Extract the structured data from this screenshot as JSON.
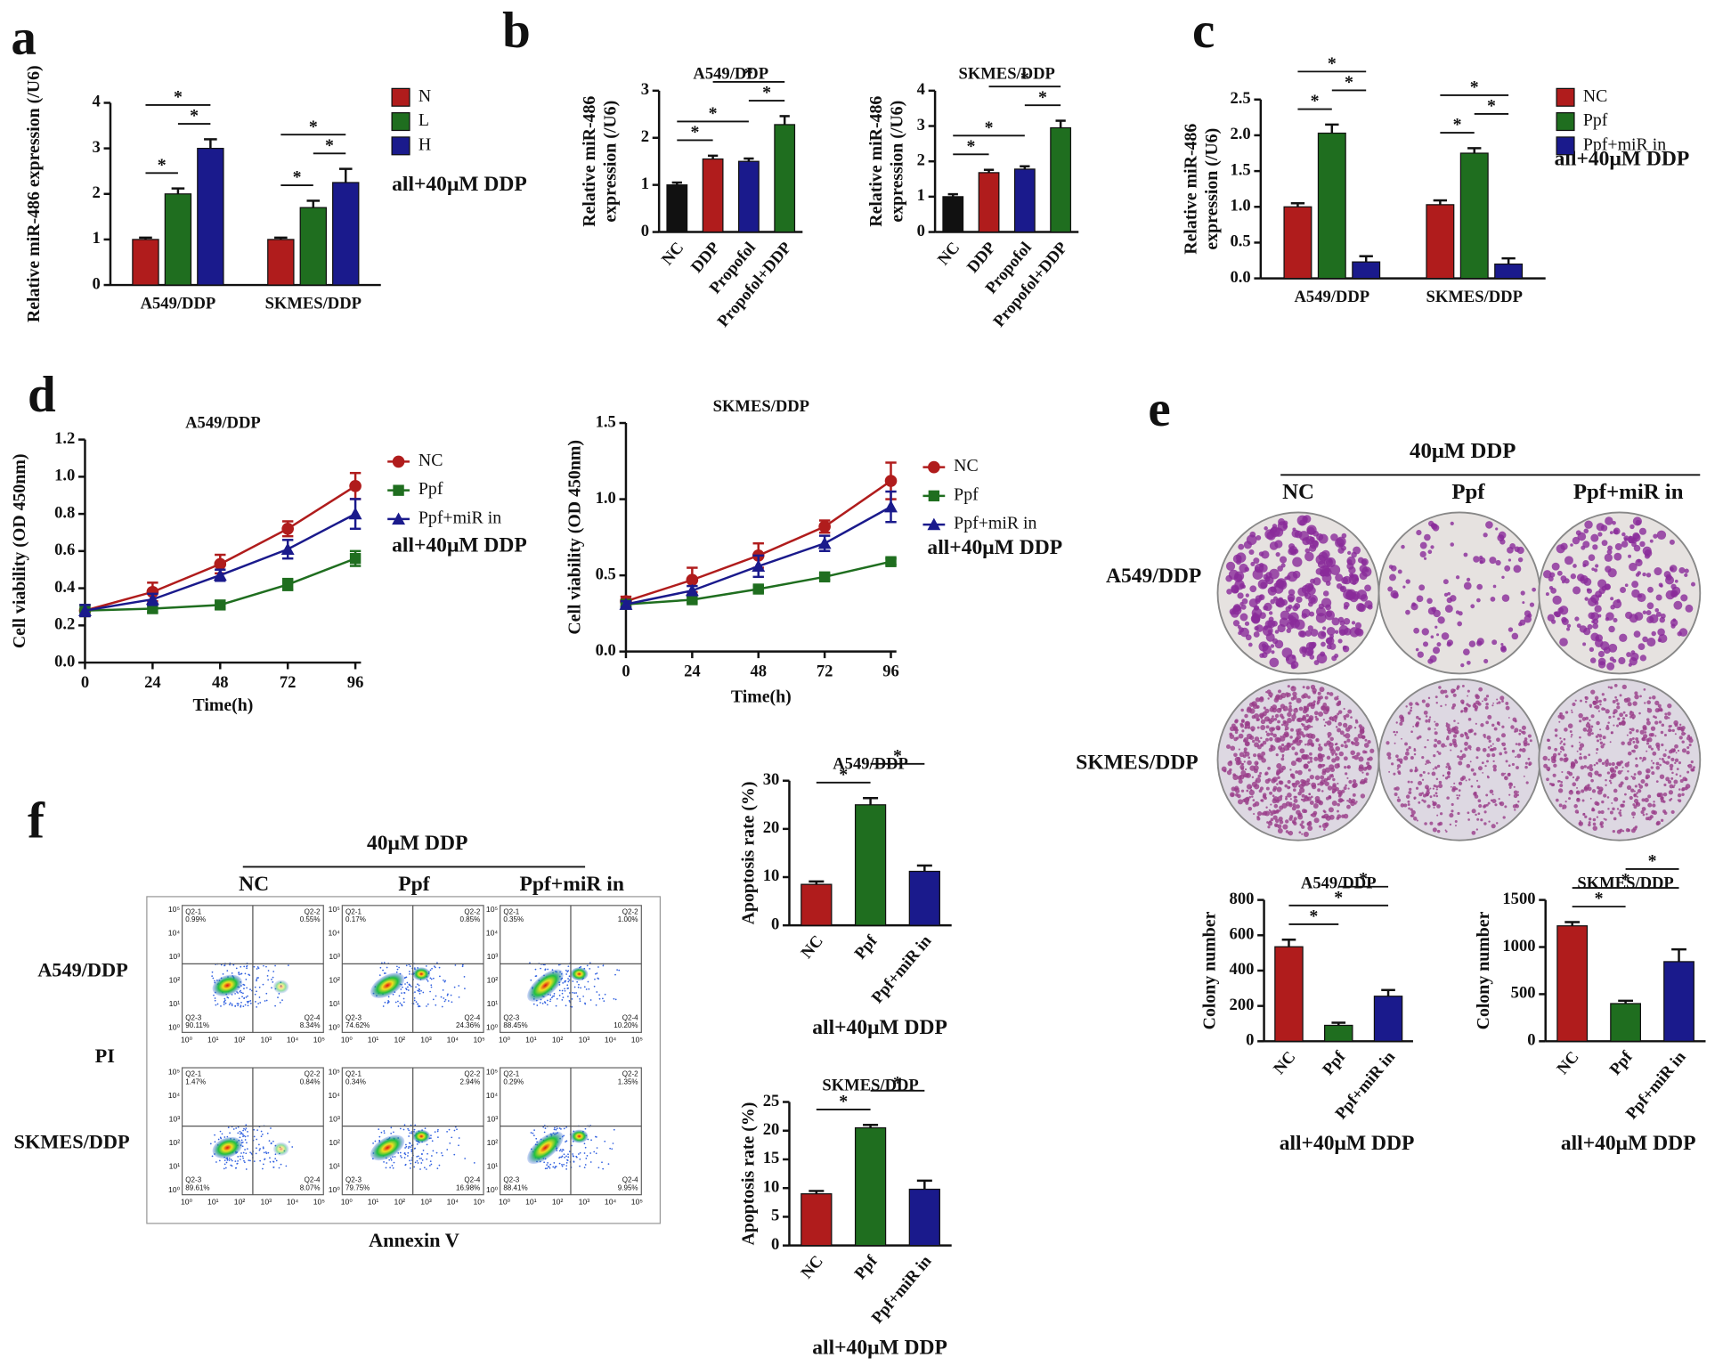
{
  "chart_data": [
    {
      "type": "bar",
      "panel": "a",
      "categories": [
        "A549/DDP",
        "SKMES/DDP"
      ],
      "series": [
        {
          "name": "N",
          "color": "#b01c1c",
          "values": [
            1.0,
            1.0
          ],
          "errors": [
            0.04,
            0.04
          ]
        },
        {
          "name": "L",
          "color": "#1f6e1f",
          "values": [
            2.0,
            1.7
          ],
          "errors": [
            0.12,
            0.15
          ]
        },
        {
          "name": "H",
          "color": "#1a1a8c",
          "values": [
            3.0,
            2.25
          ],
          "errors": [
            0.2,
            0.3
          ]
        }
      ],
      "ylim": [
        0,
        4
      ],
      "yticks": [
        0,
        1,
        2,
        3,
        4
      ],
      "ylabel": "Relative miR-486 expression (/U6)",
      "annotation": "all+40μM DDP",
      "brackets": [
        {
          "category": "A549/DDP",
          "from": "N",
          "to": "L",
          "label": "*"
        },
        {
          "category": "A549/DDP",
          "from": "L",
          "to": "H",
          "label": "*"
        },
        {
          "category": "A549/DDP",
          "from": "N",
          "to": "H",
          "label": "*"
        },
        {
          "category": "SKMES/DDP",
          "from": "N",
          "to": "L",
          "label": "*"
        },
        {
          "category": "SKMES/DDP",
          "from": "L",
          "to": "H",
          "label": "*"
        },
        {
          "category": "SKMES/DDP",
          "from": "N",
          "to": "H",
          "label": "*"
        }
      ]
    },
    {
      "type": "bar",
      "panel": "b",
      "title": "A549/DDP",
      "categories": [
        "NC",
        "DDP",
        "Propofol",
        "Propofol+DDP"
      ],
      "values": [
        1.0,
        1.55,
        1.5,
        2.28
      ],
      "errors": [
        0.05,
        0.07,
        0.06,
        0.18
      ],
      "colors": [
        "#111111",
        "#b01c1c",
        "#1a1a8c",
        "#1f6e1f"
      ],
      "ylim": [
        0,
        3
      ],
      "yticks": [
        0,
        1,
        2,
        3
      ],
      "ylabel": [
        "Relative miR-486",
        "expression (/U6)"
      ],
      "brackets": [
        {
          "from": "NC",
          "to": "DDP",
          "label": "*"
        },
        {
          "from": "NC",
          "to": "Propofol",
          "label": "*"
        },
        {
          "from": "Propofol",
          "to": "Propofol+DDP",
          "label": "*"
        },
        {
          "from": "DDP",
          "to": "Propofol+DDP",
          "label": "*"
        }
      ]
    },
    {
      "type": "bar",
      "title": "SKMES/DDP",
      "categories": [
        "NC",
        "DDP",
        "Propofol",
        "Propofol+DDP"
      ],
      "values": [
        1.0,
        1.68,
        1.78,
        2.95
      ],
      "errors": [
        0.07,
        0.08,
        0.08,
        0.2
      ],
      "colors": [
        "#111111",
        "#b01c1c",
        "#1a1a8c",
        "#1f6e1f"
      ],
      "ylim": [
        0,
        4
      ],
      "yticks": [
        0,
        1,
        2,
        3,
        4
      ],
      "ylabel": [
        "Relative miR-486",
        "expression (/U6)"
      ],
      "brackets": [
        {
          "from": "NC",
          "to": "DDP",
          "label": "*"
        },
        {
          "from": "NC",
          "to": "Propofol",
          "label": "*"
        },
        {
          "from": "Propofol",
          "to": "Propofol+DDP",
          "label": "*"
        },
        {
          "from": "DDP",
          "to": "Propofol+DDP",
          "label": "*"
        }
      ]
    },
    {
      "type": "bar",
      "panel": "c",
      "categories": [
        "A549/DDP",
        "SKMES/DDP"
      ],
      "series": [
        {
          "name": "NC",
          "color": "#b01c1c",
          "values": [
            1.0,
            1.03
          ],
          "errors": [
            0.05,
            0.06
          ]
        },
        {
          "name": "Ppf",
          "color": "#1f6e1f",
          "values": [
            2.03,
            1.75
          ],
          "errors": [
            0.12,
            0.07
          ]
        },
        {
          "name": "Ppf+miR in",
          "color": "#1a1a8c",
          "values": [
            0.23,
            0.2
          ],
          "errors": [
            0.08,
            0.08
          ]
        }
      ],
      "ylim": [
        0,
        2.5
      ],
      "yticks": [
        {
          "value": 0,
          "label": "0.0"
        },
        0.5,
        {
          "value": 1,
          "label": "1.0"
        },
        1.5,
        {
          "value": 2,
          "label": "2.0"
        },
        2.5
      ],
      "ylabel": [
        "Relative miR-486",
        "expression (/U6)"
      ],
      "annotation": "all+40μM DDP",
      "brackets": [
        {
          "category": "A549/DDP",
          "from": "NC",
          "to": "Ppf",
          "label": "*"
        },
        {
          "category": "A549/DDP",
          "from": "Ppf",
          "to": "Ppf+miR in",
          "label": "*"
        },
        {
          "category": "A549/DDP",
          "from": "NC",
          "to": "Ppf+miR in",
          "label": "*"
        },
        {
          "category": "SKMES/DDP",
          "from": "NC",
          "to": "Ppf",
          "label": "*"
        },
        {
          "category": "SKMES/DDP",
          "from": "Ppf",
          "to": "Ppf+miR in",
          "label": "*"
        },
        {
          "category": "SKMES/DDP",
          "from": "NC",
          "to": "Ppf+miR in",
          "label": "*"
        }
      ]
    },
    {
      "type": "line",
      "panel": "d",
      "title": "A549/DDP",
      "x": [
        0,
        24,
        48,
        72,
        96
      ],
      "series": [
        {
          "name": "NC",
          "color": "#b01c1c",
          "marker": "circle",
          "values": [
            0.28,
            0.38,
            0.53,
            0.72,
            0.95
          ],
          "errors": [
            0.03,
            0.05,
            0.05,
            0.04,
            0.07
          ]
        },
        {
          "name": "Ppf",
          "color": "#1f6e1f",
          "marker": "square",
          "values": [
            0.28,
            0.29,
            0.31,
            0.42,
            0.56
          ],
          "errors": [
            0.03,
            0.02,
            0.02,
            0.03,
            0.04
          ]
        },
        {
          "name": "Ppf+miR in",
          "color": "#1a1a8c",
          "marker": "triangle",
          "values": [
            0.28,
            0.34,
            0.47,
            0.61,
            0.8
          ],
          "errors": [
            0.03,
            0.03,
            0.03,
            0.05,
            0.08
          ]
        }
      ],
      "xlim": [
        0,
        98
      ],
      "xticks": [
        0,
        24,
        48,
        72,
        96
      ],
      "ylim": [
        0,
        1.2
      ],
      "yticks": [
        {
          "value": 0,
          "label": "0.0"
        },
        0.2,
        0.4,
        0.6,
        0.8,
        {
          "value": 1,
          "label": "1.0"
        },
        1.2
      ],
      "xlabel": "Time(h)",
      "ylabel": "Cell viability (OD 450nm)",
      "annotation": "all+40μM DDP"
    },
    {
      "type": "line",
      "title": "SKMES/DDP",
      "x": [
        0,
        24,
        48,
        72,
        96
      ],
      "series": [
        {
          "name": "NC",
          "color": "#b01c1c",
          "marker": "circle",
          "values": [
            0.33,
            0.47,
            0.63,
            0.82,
            1.12
          ],
          "errors": [
            0.03,
            0.08,
            0.08,
            0.04,
            0.12
          ]
        },
        {
          "name": "Ppf",
          "color": "#1f6e1f",
          "marker": "square",
          "values": [
            0.31,
            0.34,
            0.41,
            0.49,
            0.59
          ],
          "errors": [
            0.02,
            0.02,
            0.02,
            0.02,
            0.02
          ]
        },
        {
          "name": "Ppf+miR in",
          "color": "#1a1a8c",
          "marker": "triangle",
          "values": [
            0.31,
            0.4,
            0.56,
            0.71,
            0.95
          ],
          "errors": [
            0.02,
            0.03,
            0.07,
            0.05,
            0.1
          ]
        }
      ],
      "xlim": [
        0,
        98
      ],
      "xticks": [
        0,
        24,
        48,
        72,
        96
      ],
      "ylim": [
        0,
        1.5
      ],
      "yticks": [
        {
          "value": 0,
          "label": "0.0"
        },
        0.5,
        {
          "value": 1,
          "label": "1.0"
        },
        1.5
      ],
      "xlabel": "Time(h)",
      "ylabel": "Cell viability (OD 450nm)",
      "annotation": "all+40μM DDP"
    },
    {
      "type": "bar",
      "title": "A549/DDP",
      "categories": [
        "NC",
        "Ppf",
        "Ppf+miR in"
      ],
      "values": [
        535,
        90,
        255
      ],
      "errors": [
        40,
        15,
        35
      ],
      "colors": [
        "#b01c1c",
        "#1f6e1f",
        "#1a1a8c"
      ],
      "ylim": [
        0,
        800
      ],
      "yticks": [
        0,
        200,
        400,
        600,
        800
      ],
      "ylabel": "Colony number",
      "annotation": "all+40μM DDP",
      "brackets": [
        {
          "from": "NC",
          "to": "Ppf",
          "label": "*"
        },
        {
          "from": "NC",
          "to": "Ppf+miR in",
          "label": "*"
        },
        {
          "from": "Ppf",
          "to": "Ppf+miR in",
          "label": "*"
        }
      ]
    },
    {
      "type": "bar",
      "title": "SKMES/DDP",
      "categories": [
        "NC",
        "Ppf",
        "Ppf+miR in"
      ],
      "values": [
        1225,
        400,
        845
      ],
      "errors": [
        40,
        30,
        130
      ],
      "colors": [
        "#b01c1c",
        "#1f6e1f",
        "#1a1a8c"
      ],
      "ylim": [
        0,
        1500
      ],
      "yticks": [
        0,
        500,
        1000,
        1500
      ],
      "ylabel": "Colony number",
      "annotation": "all+40μM DDP",
      "brackets": [
        {
          "from": "NC",
          "to": "Ppf",
          "label": "*"
        },
        {
          "from": "NC",
          "to": "Ppf+miR in",
          "label": "*"
        },
        {
          "from": "Ppf",
          "to": "Ppf+miR in",
          "label": "*"
        }
      ]
    },
    {
      "type": "bar",
      "title": "A549/DDP",
      "categories": [
        "NC",
        "Ppf",
        "Ppf+miR in"
      ],
      "values": [
        8.5,
        25,
        11.2
      ],
      "errors": [
        0.6,
        1.4,
        1.2
      ],
      "colors": [
        "#b01c1c",
        "#1f6e1f",
        "#1a1a8c"
      ],
      "ylim": [
        0,
        30
      ],
      "yticks": [
        0,
        10,
        20,
        30
      ],
      "ylabel": "Apoptosis rate (%)",
      "annotation": "all+40μM DDP",
      "brackets": [
        {
          "from": "NC",
          "to": "Ppf",
          "label": "*"
        },
        {
          "from": "Ppf",
          "to": "Ppf+miR in",
          "label": "*"
        }
      ]
    },
    {
      "type": "bar",
      "title": "SKMES/DDP",
      "categories": [
        "NC",
        "Ppf",
        "Ppf+miR in"
      ],
      "values": [
        9,
        20.5,
        9.8
      ],
      "errors": [
        0.5,
        0.5,
        1.5
      ],
      "colors": [
        "#b01c1c",
        "#1f6e1f",
        "#1a1a8c"
      ],
      "ylim": [
        0,
        25
      ],
      "yticks": [
        0,
        5,
        10,
        15,
        20,
        25
      ],
      "ylabel": "Apoptosis rate (%)",
      "annotation": "all+40μM DDP",
      "brackets": [
        {
          "from": "NC",
          "to": "Ppf",
          "label": "*"
        },
        {
          "from": "Ppf",
          "to": "Ppf+miR in",
          "label": "*"
        }
      ]
    }
  ],
  "colony_panel": {
    "panel": "e",
    "treatment": "40μM DDP",
    "columns": [
      "NC",
      "Ppf",
      "Ppf+miR in"
    ],
    "rows": [
      "A549/DDP",
      "SKMES/DDP"
    ]
  },
  "flow_panel": {
    "panel": "f",
    "treatment": "40μM DDP",
    "columns": [
      "NC",
      "Ppf",
      "Ppf+miR in"
    ],
    "rows": [
      "A549/DDP",
      "SKMES/DDP"
    ],
    "y_label": "PI",
    "x_label": "Annexin V",
    "axis_ticks": [
      "10⁰",
      "10¹",
      "10²",
      "10³",
      "10⁴",
      "10⁵"
    ],
    "quadrant_names": [
      "Q2-1",
      "Q2-2",
      "Q2-3",
      "Q2-4"
    ],
    "plots": [
      [
        [
          "0.99%",
          "0.55%",
          "90.11%",
          "8.34%"
        ],
        [
          "0.17%",
          "0.85%",
          "74.62%",
          "24.36%"
        ],
        [
          "0.35%",
          "1.00%",
          "88.45%",
          "10.20%"
        ]
      ],
      [
        [
          "1.47%",
          "0.84%",
          "89.61%",
          "8.07%"
        ],
        [
          "0.34%",
          "2.94%",
          "79.75%",
          "16.98%"
        ],
        [
          "0.29%",
          "1.35%",
          "88.41%",
          "9.95%"
        ]
      ]
    ]
  }
}
